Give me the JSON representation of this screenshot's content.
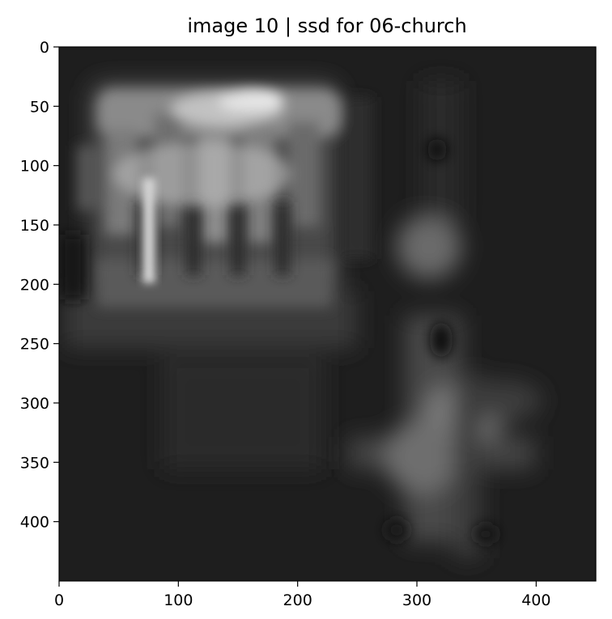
{
  "chart_data": {
    "type": "heatmap",
    "title": "image 10 | ssd for 06-church",
    "xlabel": "",
    "ylabel": "",
    "colormap": "gray",
    "xlim": [
      0,
      450
    ],
    "ylim": [
      450,
      0
    ],
    "x_ticks": [
      0,
      100,
      200,
      300,
      400
    ],
    "y_ticks": [
      0,
      50,
      100,
      150,
      200,
      250,
      300,
      350,
      400
    ],
    "grid": false,
    "background_color": "#1e1e1e",
    "highlights": [
      {
        "x": 165,
        "y": 45,
        "rx": 30,
        "ry": 12,
        "intensity": 1.0
      },
      {
        "x": 75,
        "y": 165,
        "rx": 8,
        "ry": 55,
        "intensity": 0.85
      },
      {
        "x": 320,
        "y": 170,
        "rx": 25,
        "ry": 25,
        "intensity": 0.55
      },
      {
        "x": 340,
        "y": 310,
        "rx": 30,
        "ry": 25,
        "intensity": 0.6
      },
      {
        "x": 305,
        "y": 345,
        "rx": 25,
        "ry": 30,
        "intensity": 0.55
      },
      {
        "x": 150,
        "y": 320,
        "rx": 55,
        "ry": 35,
        "intensity": 0.25
      }
    ]
  }
}
